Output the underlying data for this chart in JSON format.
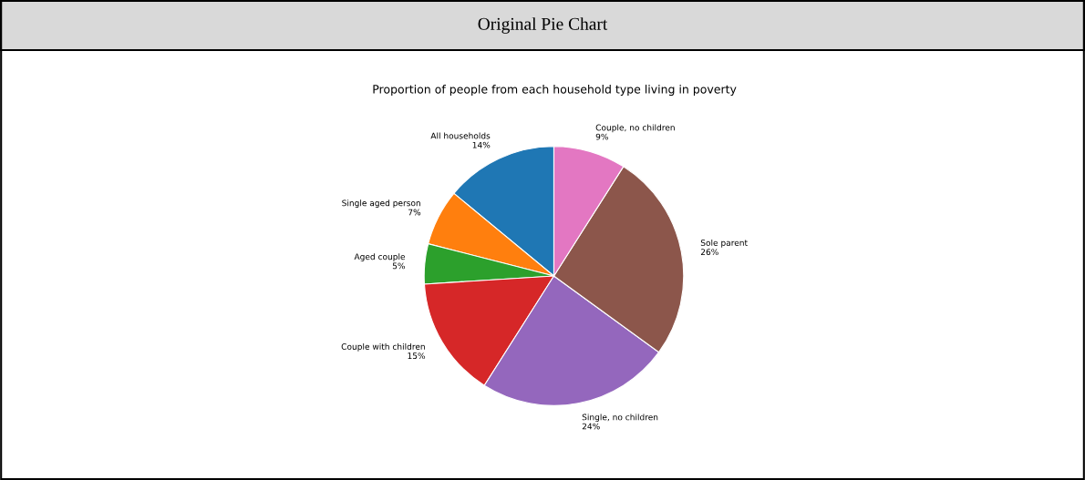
{
  "chart_data": {
    "type": "pie",
    "title": "Original Pie Chart",
    "subtitle": "Proportion of people from each household type living in poverty",
    "categories": [
      "All households",
      "Single aged person",
      "Aged couple",
      "Couple with children",
      "Single, no children",
      "Sole parent",
      "Couple, no children"
    ],
    "values": [
      14,
      7,
      5,
      15,
      24,
      26,
      9
    ],
    "value_labels": [
      "14%",
      "7%",
      "5%",
      "15%",
      "24%",
      "26%",
      "9%"
    ],
    "colors": [
      "#1f77b4",
      "#ff7f0e",
      "#2ca02c",
      "#d62728",
      "#9467bd",
      "#8c564b",
      "#e377c2"
    ],
    "legend": false
  }
}
